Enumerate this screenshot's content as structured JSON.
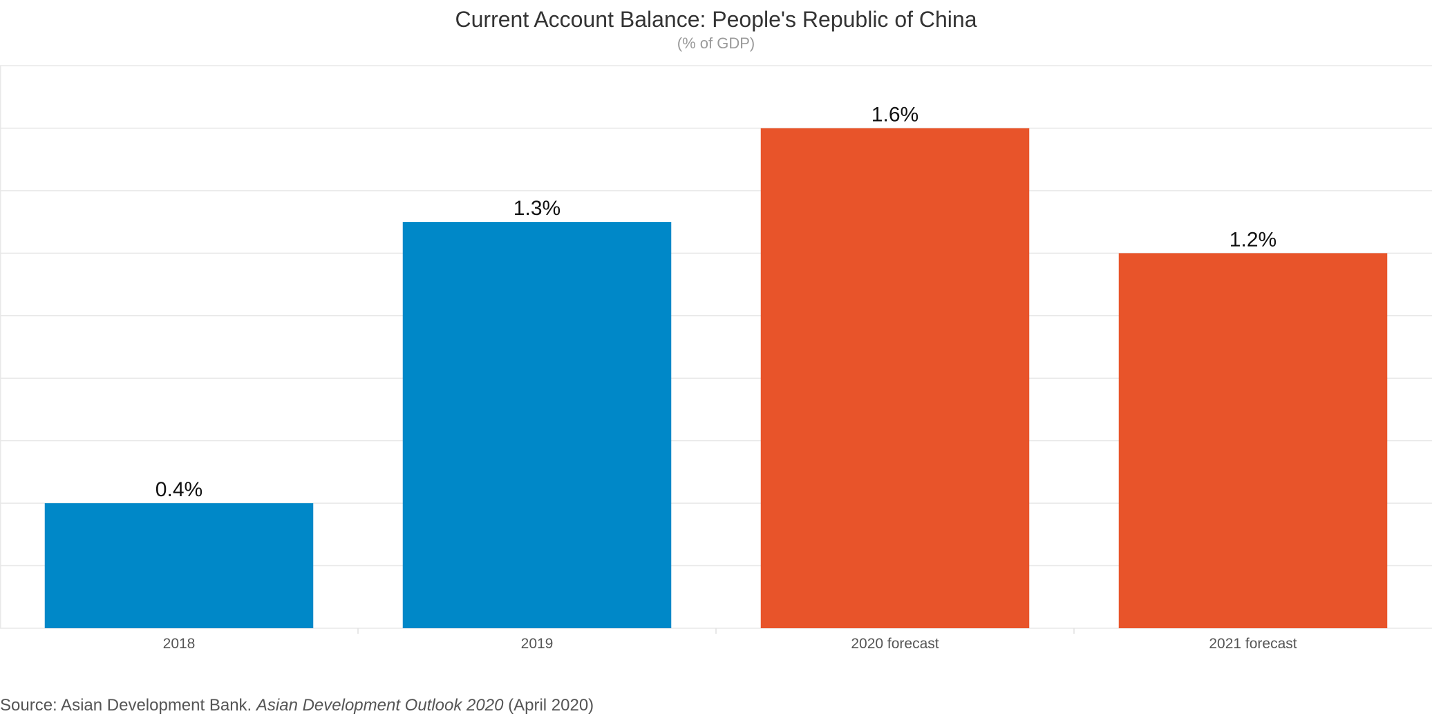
{
  "chart_data": {
    "type": "bar",
    "title": "Current Account Balance: People's Republic of China",
    "subtitle": "(% of GDP)",
    "categories": [
      "2018",
      "2019",
      "2020 forecast",
      "2021 forecast"
    ],
    "values": [
      0.4,
      1.3,
      1.6,
      1.2
    ],
    "data_labels": [
      "0.4%",
      "1.3%",
      "1.6%",
      "1.2%"
    ],
    "bar_colors": [
      "#0088c8",
      "#0088c8",
      "#e8542a",
      "#e8542a"
    ],
    "ylim": [
      0,
      1.8
    ],
    "gridline_step": 0.2,
    "grid": true,
    "xlabel": "",
    "ylabel": ""
  },
  "source": {
    "prefix": "Source: Asian Development Bank. ",
    "publication": "Asian Development Outlook 2020",
    "suffix": " (April 2020)"
  }
}
